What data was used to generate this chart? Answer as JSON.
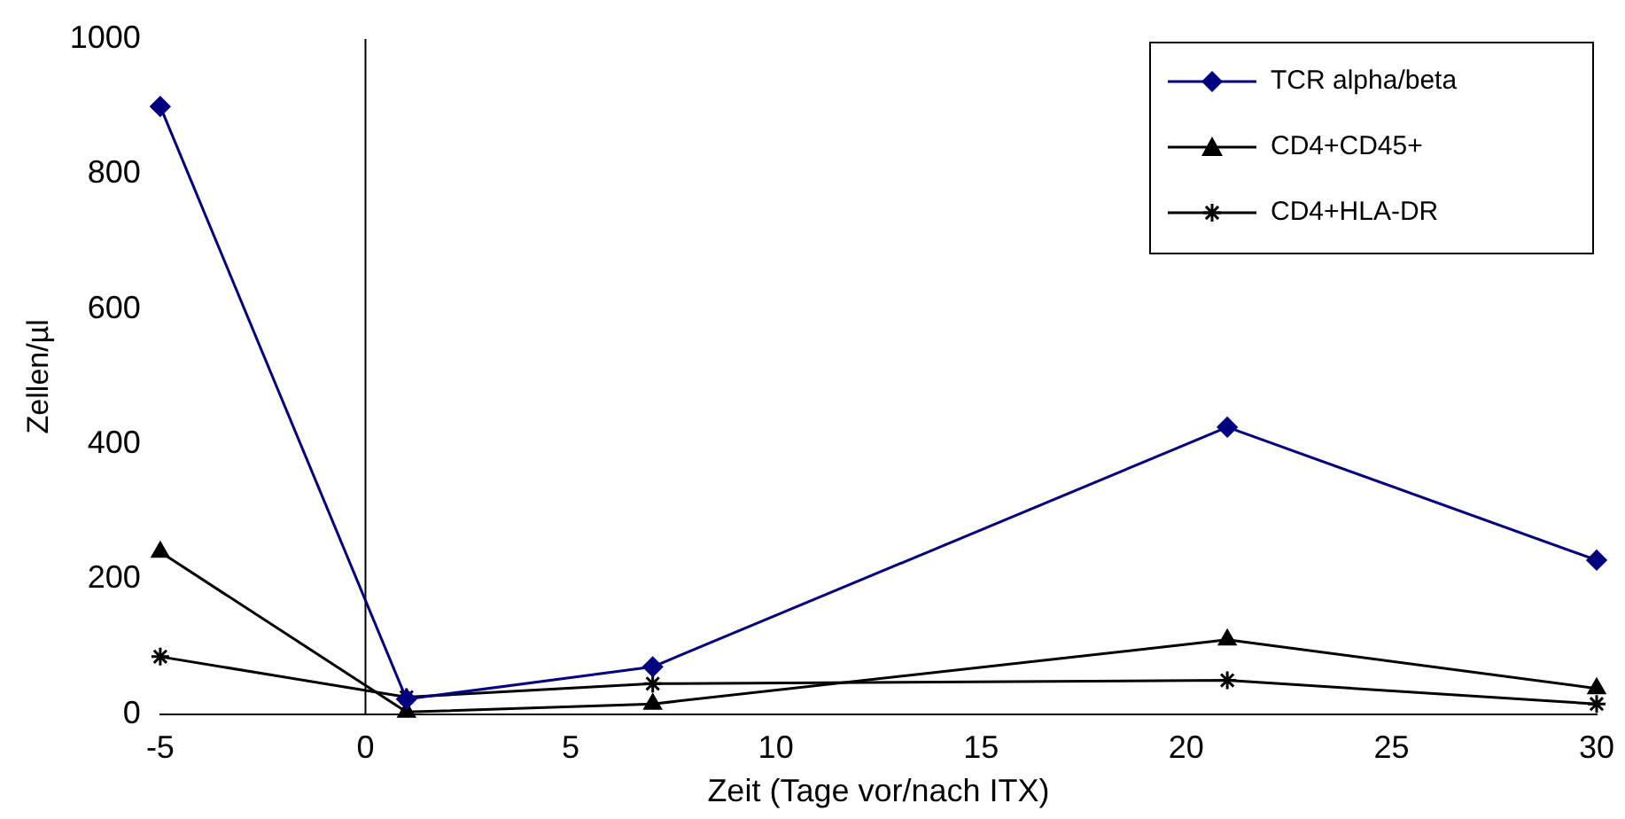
{
  "chart_data": {
    "type": "line",
    "xlabel": "Zeit (Tage vor/nach ITX)",
    "ylabel": "Zellen/µl",
    "xlim": [
      -5,
      30
    ],
    "xticks": [
      -5,
      0,
      5,
      10,
      15,
      20,
      25,
      30
    ],
    "ylim": [
      0,
      1000
    ],
    "yticks": [
      0,
      200,
      400,
      600,
      800,
      1000
    ],
    "x": [
      -5,
      1,
      7,
      21,
      30
    ],
    "grid": false,
    "legend": "top right",
    "line_style": "solid",
    "ref_lines": [
      {
        "axis": "x",
        "value": 0,
        "color": "#000000"
      }
    ],
    "series": [
      {
        "name": "TCR alpha/beta",
        "color": "#000080",
        "marker": "diamond",
        "values": [
          900,
          22,
          70,
          425,
          228
        ]
      },
      {
        "name": "CD4+CD45+",
        "color": "#000000",
        "marker": "triangle",
        "values": [
          240,
          3,
          15,
          110,
          38
        ]
      },
      {
        "name": "CD4+HLA-DR",
        "color": "#000000",
        "marker": "cross",
        "values": [
          85,
          25,
          45,
          50,
          15
        ]
      }
    ]
  }
}
